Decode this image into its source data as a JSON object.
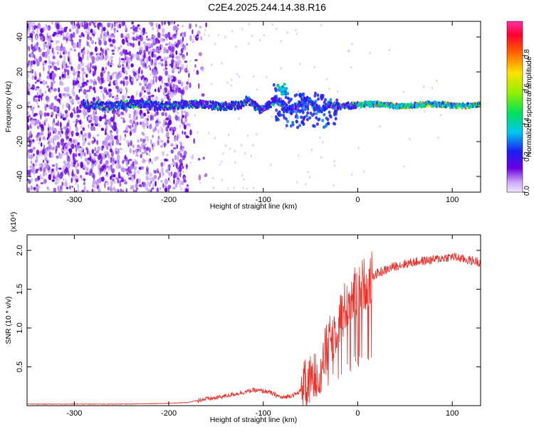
{
  "title": "C2E4.2025.244.14.38.R16",
  "colors": {
    "snr_line": "#e8302a",
    "spectrogram_base": "#5a00d8",
    "axis": "#000000"
  },
  "chart_data": [
    {
      "type": "heatmap",
      "xlabel": "Height of straight line (km)",
      "ylabel": "Frequency (Hz)",
      "xlim": [
        -350,
        130
      ],
      "ylim": [
        -49,
        49
      ],
      "xticks": [
        -300,
        -200,
        -100,
        0,
        100
      ],
      "yticks": [
        -40,
        -20,
        0,
        20,
        40
      ],
      "colorbar": {
        "label": "Normalized spectral amplitude",
        "range": [
          0,
          1
        ],
        "ticks": [
          "0.0",
          "0.2",
          "0.4",
          "0.6",
          "0.8"
        ],
        "colormap": "rainbow"
      },
      "features": {
        "ridge_frequency_hz": 1,
        "ridge_start_km": -290,
        "diffuse_noise_end_km": -180,
        "plume_center_km": -80,
        "plume_frequency_hz": 10
      }
    },
    {
      "type": "line",
      "xlabel": "Height of straight line (km)",
      "ylabel": "SNR (10 * v/v)",
      "y_multiplier": "(x10⁴)",
      "xlim": [
        -350,
        130
      ],
      "ylim": [
        0,
        2.2
      ],
      "xticks": [
        -300,
        -200,
        -100,
        0,
        100
      ],
      "yticks": [
        0.5,
        1.0,
        1.5,
        2.0
      ],
      "series": [
        {
          "x": [
            -350,
            -300,
            -250,
            -200,
            -180,
            -165,
            -150,
            -130,
            -110,
            -95,
            -80,
            -65,
            -50,
            -40,
            -30,
            -20,
            -10,
            0,
            10,
            20,
            40,
            60,
            80,
            100,
            115,
            130
          ],
          "y": [
            0.02,
            0.02,
            0.02,
            0.03,
            0.04,
            0.08,
            0.1,
            0.15,
            0.2,
            0.18,
            0.1,
            0.15,
            0.3,
            0.5,
            0.8,
            1.1,
            1.35,
            1.5,
            1.6,
            1.7,
            1.8,
            1.85,
            1.88,
            1.92,
            1.88,
            1.85
          ]
        }
      ]
    }
  ]
}
